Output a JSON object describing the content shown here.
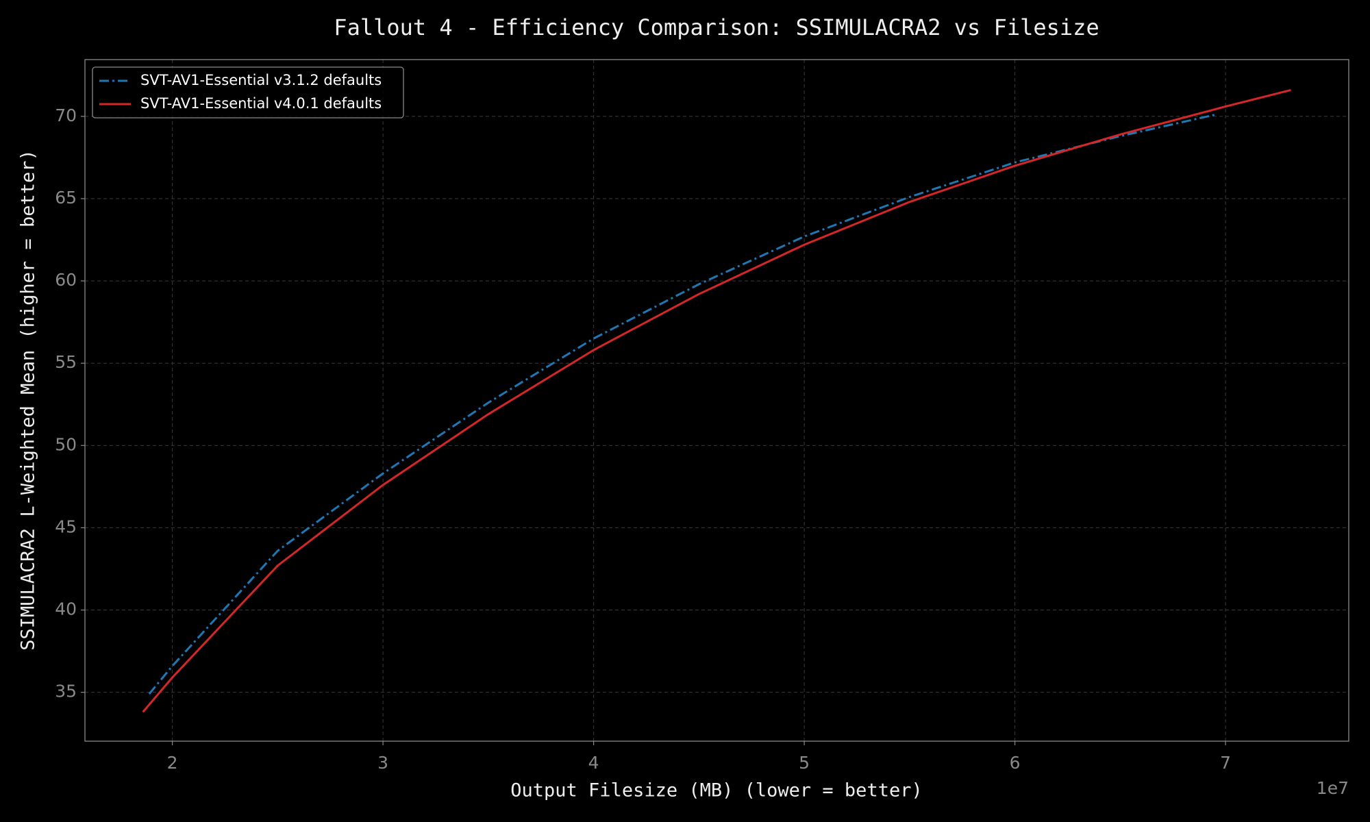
{
  "chart_data": {
    "type": "line",
    "title": "Fallout 4 - Efficiency Comparison: SSIMULACRA2 vs Filesize",
    "xlabel": "Output Filesize (MB) (lower = better)",
    "ylabel": "SSIMULACRA2 L-Weighted Mean (higher = better)",
    "x_offset_label": "1e7",
    "xlim": [
      1.585,
      7.585
    ],
    "xticks": [
      2,
      3,
      4,
      5,
      6,
      7
    ],
    "ylim": [
      32.03,
      73.45
    ],
    "yticks": [
      35,
      40,
      45,
      50,
      55,
      60,
      65,
      70
    ],
    "grid": true,
    "legend": "upper left",
    "series": [
      {
        "name": "SVT-AV1-Essential v3.1.2 defaults",
        "color": "#1f77b4",
        "linestyle": "dashdot",
        "x": [
          1.89,
          2.0,
          2.5,
          3.0,
          3.5,
          4.0,
          4.5,
          5.0,
          5.5,
          6.0,
          6.5,
          6.95
        ],
        "values": [
          34.9,
          36.6,
          43.6,
          48.3,
          52.6,
          56.5,
          59.8,
          62.7,
          65.1,
          67.2,
          68.8,
          70.1
        ]
      },
      {
        "name": "SVT-AV1-Essential v4.0.1 defaults",
        "color": "#d62728",
        "linestyle": "solid",
        "x": [
          1.86,
          2.0,
          2.5,
          3.0,
          3.5,
          4.0,
          4.5,
          5.0,
          5.5,
          6.0,
          6.5,
          7.0,
          7.31
        ],
        "values": [
          33.8,
          35.9,
          42.7,
          47.6,
          51.9,
          55.8,
          59.2,
          62.2,
          64.8,
          67.0,
          68.9,
          70.6,
          71.6
        ]
      }
    ]
  }
}
